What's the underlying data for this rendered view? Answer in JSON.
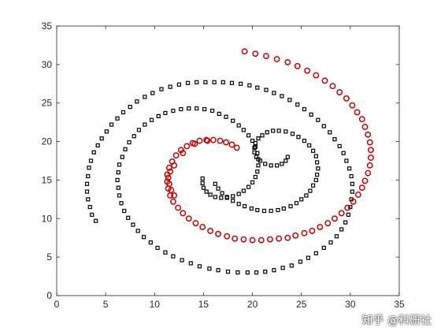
{
  "chart_data": {
    "type": "scatter",
    "title": "",
    "xlabel": "",
    "ylabel": "",
    "xlim": [
      0,
      35
    ],
    "ylim": [
      0,
      35
    ],
    "xticks": [
      0,
      5,
      10,
      15,
      20,
      25,
      30,
      35
    ],
    "yticks": [
      0,
      5,
      10,
      15,
      20,
      25,
      30,
      35
    ],
    "grid": false,
    "series": [
      {
        "marker": "square",
        "color": "#000000",
        "points": [
          [
            4.0,
            9.7
          ],
          [
            3.6,
            10.5
          ],
          [
            3.4,
            11.5
          ],
          [
            3.2,
            12.5
          ],
          [
            3.1,
            13.5
          ],
          [
            3.1,
            14.5
          ],
          [
            3.2,
            15.5
          ],
          [
            3.3,
            16.6
          ],
          [
            3.5,
            17.5
          ],
          [
            3.8,
            18.6
          ],
          [
            4.2,
            19.5
          ],
          [
            4.6,
            20.4
          ],
          [
            5.1,
            21.3
          ],
          [
            5.6,
            22.2
          ],
          [
            6.2,
            23.0
          ],
          [
            6.8,
            23.8
          ],
          [
            7.5,
            24.5
          ],
          [
            8.2,
            25.2
          ],
          [
            9.0,
            25.8
          ],
          [
            9.8,
            26.3
          ],
          [
            10.7,
            26.8
          ],
          [
            11.6,
            27.1
          ],
          [
            12.5,
            27.4
          ],
          [
            13.4,
            27.6
          ],
          [
            14.3,
            27.7
          ],
          [
            15.2,
            27.7
          ],
          [
            16.1,
            27.7
          ],
          [
            17.0,
            27.7
          ],
          [
            17.9,
            27.6
          ],
          [
            18.8,
            27.5
          ],
          [
            19.7,
            27.3
          ],
          [
            20.5,
            27.0
          ],
          [
            21.4,
            26.7
          ],
          [
            22.2,
            26.3
          ],
          [
            23.0,
            25.9
          ],
          [
            23.8,
            25.4
          ],
          [
            24.6,
            24.8
          ],
          [
            25.3,
            24.2
          ],
          [
            26.0,
            23.5
          ],
          [
            26.7,
            22.8
          ],
          [
            27.3,
            22.0
          ],
          [
            27.9,
            21.2
          ],
          [
            28.4,
            20.3
          ],
          [
            28.9,
            19.4
          ],
          [
            29.3,
            18.5
          ],
          [
            29.6,
            17.5
          ],
          [
            29.9,
            16.5
          ],
          [
            30.1,
            15.5
          ],
          [
            30.2,
            14.5
          ],
          [
            30.2,
            13.5
          ],
          [
            30.1,
            12.5
          ],
          [
            30.0,
            11.5
          ],
          [
            29.8,
            10.5
          ],
          [
            29.5,
            9.5
          ],
          [
            29.1,
            8.6
          ],
          [
            28.6,
            7.7
          ],
          [
            28.0,
            6.9
          ],
          [
            27.3,
            6.2
          ],
          [
            26.5,
            5.5
          ],
          [
            25.7,
            4.9
          ],
          [
            24.9,
            4.4
          ],
          [
            24.0,
            3.9
          ],
          [
            23.1,
            3.6
          ],
          [
            22.2,
            3.3
          ],
          [
            21.3,
            3.1
          ],
          [
            20.4,
            3.0
          ],
          [
            19.5,
            3.0
          ],
          [
            18.5,
            3.0
          ],
          [
            17.5,
            3.1
          ],
          [
            16.5,
            3.3
          ],
          [
            15.6,
            3.5
          ],
          [
            14.6,
            3.8
          ],
          [
            13.7,
            4.2
          ],
          [
            12.8,
            4.6
          ],
          [
            11.9,
            5.1
          ],
          [
            11.1,
            5.6
          ],
          [
            10.3,
            6.2
          ],
          [
            9.6,
            6.9
          ],
          [
            8.9,
            7.6
          ],
          [
            8.3,
            8.4
          ],
          [
            7.8,
            9.2
          ],
          [
            7.3,
            10.1
          ],
          [
            6.9,
            11.0
          ],
          [
            6.6,
            12.0
          ],
          [
            6.4,
            13.0
          ],
          [
            6.3,
            14.0
          ],
          [
            6.2,
            15.0
          ],
          [
            6.3,
            16.0
          ],
          [
            6.4,
            17.0
          ],
          [
            6.7,
            18.0
          ],
          [
            7.0,
            19.0
          ],
          [
            7.4,
            19.9
          ],
          [
            7.9,
            20.7
          ],
          [
            8.4,
            21.5
          ],
          [
            9.0,
            22.2
          ],
          [
            9.7,
            22.8
          ],
          [
            10.4,
            23.3
          ],
          [
            11.1,
            23.7
          ],
          [
            11.9,
            24.0
          ],
          [
            12.7,
            24.2
          ],
          [
            13.5,
            24.3
          ],
          [
            14.3,
            24.3
          ],
          [
            15.1,
            24.2
          ],
          [
            15.9,
            24.0
          ],
          [
            16.6,
            23.6
          ],
          [
            17.3,
            23.2
          ],
          [
            18.0,
            22.7
          ],
          [
            18.6,
            22.1
          ],
          [
            19.1,
            21.5
          ],
          [
            19.6,
            20.8
          ],
          [
            20.0,
            20.1
          ],
          [
            20.3,
            19.3
          ],
          [
            20.5,
            18.5
          ],
          [
            20.6,
            17.7
          ],
          [
            20.6,
            16.9
          ],
          [
            20.5,
            16.1
          ],
          [
            20.3,
            15.4
          ],
          [
            20.0,
            14.7
          ],
          [
            19.6,
            14.1
          ],
          [
            19.1,
            13.6
          ],
          [
            18.6,
            13.2
          ],
          [
            18.0,
            12.9
          ],
          [
            17.4,
            12.7
          ],
          [
            16.8,
            12.7
          ],
          [
            16.2,
            12.8
          ],
          [
            15.7,
            13.1
          ],
          [
            15.3,
            13.5
          ],
          [
            15.0,
            14.0
          ],
          [
            14.9,
            14.6
          ],
          [
            14.9,
            15.2
          ],
          [
            16.2,
            14.5
          ],
          [
            16.5,
            13.9
          ],
          [
            16.9,
            13.3
          ],
          [
            17.4,
            12.8
          ],
          [
            18.0,
            12.3
          ],
          [
            18.6,
            11.9
          ],
          [
            19.2,
            11.6
          ],
          [
            19.9,
            11.3
          ],
          [
            20.5,
            11.1
          ],
          [
            21.2,
            11.0
          ],
          [
            21.9,
            11.0
          ],
          [
            22.6,
            11.1
          ],
          [
            23.2,
            11.3
          ],
          [
            23.9,
            11.6
          ],
          [
            24.5,
            12.0
          ],
          [
            25.0,
            12.5
          ],
          [
            25.5,
            13.0
          ],
          [
            25.9,
            13.6
          ],
          [
            26.2,
            14.3
          ],
          [
            26.5,
            15.0
          ],
          [
            26.6,
            15.7
          ],
          [
            26.7,
            16.5
          ],
          [
            26.6,
            17.3
          ],
          [
            26.5,
            18.1
          ],
          [
            26.2,
            18.8
          ],
          [
            25.8,
            19.5
          ],
          [
            25.3,
            20.1
          ],
          [
            24.7,
            20.6
          ],
          [
            24.1,
            21.0
          ],
          [
            23.4,
            21.3
          ],
          [
            22.7,
            21.4
          ],
          [
            22.1,
            21.4
          ],
          [
            21.5,
            21.2
          ],
          [
            21.0,
            20.8
          ],
          [
            20.6,
            20.4
          ],
          [
            20.3,
            19.8
          ],
          [
            20.2,
            19.2
          ],
          [
            20.2,
            18.6
          ],
          [
            20.4,
            18.0
          ],
          [
            20.8,
            17.5
          ],
          [
            21.3,
            17.1
          ],
          [
            21.9,
            16.9
          ],
          [
            22.5,
            16.9
          ],
          [
            23.0,
            17.1
          ],
          [
            23.4,
            17.5
          ],
          [
            23.6,
            18.0
          ]
        ]
      },
      {
        "marker": "circle",
        "color": "#cc0000",
        "points": [
          [
            19.2,
            31.7
          ],
          [
            20.3,
            31.4
          ],
          [
            21.4,
            31.1
          ],
          [
            22.5,
            30.7
          ],
          [
            23.6,
            30.3
          ],
          [
            24.6,
            29.8
          ],
          [
            25.6,
            29.2
          ],
          [
            26.5,
            28.6
          ],
          [
            27.4,
            27.9
          ],
          [
            28.2,
            27.2
          ],
          [
            28.9,
            26.4
          ],
          [
            29.6,
            25.6
          ],
          [
            30.2,
            24.7
          ],
          [
            30.7,
            23.8
          ],
          [
            31.2,
            22.9
          ],
          [
            31.5,
            21.9
          ],
          [
            31.8,
            20.9
          ],
          [
            32.0,
            19.9
          ],
          [
            32.1,
            18.9
          ],
          [
            32.1,
            17.9
          ],
          [
            32.0,
            16.9
          ],
          [
            31.8,
            15.9
          ],
          [
            31.5,
            14.9
          ],
          [
            31.2,
            14.0
          ],
          [
            30.8,
            13.1
          ],
          [
            30.3,
            12.2
          ],
          [
            29.7,
            11.4
          ],
          [
            29.1,
            10.7
          ],
          [
            28.4,
            10.0
          ],
          [
            27.7,
            9.4
          ],
          [
            26.9,
            8.9
          ],
          [
            26.1,
            8.4
          ],
          [
            25.3,
            8.1
          ],
          [
            24.4,
            7.8
          ],
          [
            23.6,
            7.5
          ],
          [
            22.7,
            7.4
          ],
          [
            21.8,
            7.3
          ],
          [
            20.9,
            7.2
          ],
          [
            20.0,
            7.2
          ],
          [
            19.1,
            7.3
          ],
          [
            18.2,
            7.4
          ],
          [
            17.4,
            7.7
          ],
          [
            16.5,
            8.0
          ],
          [
            15.7,
            8.4
          ],
          [
            14.9,
            8.9
          ],
          [
            14.2,
            9.4
          ],
          [
            13.5,
            10.0
          ],
          [
            12.9,
            10.7
          ],
          [
            12.4,
            11.4
          ],
          [
            11.9,
            12.2
          ],
          [
            11.6,
            13.0
          ],
          [
            11.4,
            13.9
          ],
          [
            11.3,
            14.8
          ],
          [
            11.3,
            15.7
          ],
          [
            11.5,
            16.6
          ],
          [
            11.8,
            17.4
          ],
          [
            12.2,
            18.2
          ],
          [
            12.7,
            18.9
          ],
          [
            13.3,
            19.4
          ],
          [
            13.9,
            19.8
          ],
          [
            14.6,
            20.1
          ],
          [
            15.3,
            20.2
          ],
          [
            16.0,
            20.2
          ],
          [
            16.7,
            20.1
          ],
          [
            17.3,
            19.9
          ],
          [
            17.9,
            19.6
          ],
          [
            18.4,
            19.2
          ],
          [
            12.0,
            16.9
          ],
          [
            11.6,
            16.1
          ],
          [
            11.4,
            15.3
          ],
          [
            11.5,
            14.5
          ],
          [
            11.7,
            13.7
          ],
          [
            12.0,
            13.0
          ],
          [
            15.4,
            20.1
          ],
          [
            14.1,
            19.7
          ],
          [
            12.9,
            18.5
          ]
        ]
      }
    ]
  },
  "watermark": "知乎 @科研社"
}
